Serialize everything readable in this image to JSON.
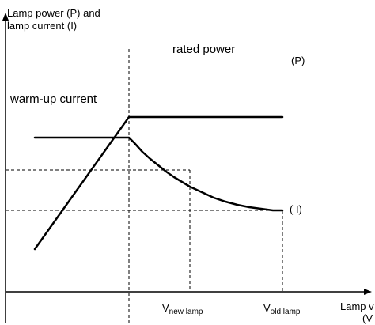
{
  "chart_data": {
    "type": "line",
    "ylabel_line1": "Lamp power (P) and",
    "ylabel_line2": "lamp current (I)",
    "xlabel_line1": "Lamp v",
    "xlabel_line2": "(V",
    "annotations": {
      "rated_power": "rated power",
      "warmup_current": "warm-up current",
      "power_marker": "(P)",
      "current_marker": "( I)"
    },
    "x_ticks": [
      {
        "main": "V",
        "sub": "new lamp",
        "x": 240
      },
      {
        "main": "V",
        "sub": "old lamp",
        "x": 357
      }
    ],
    "series": [
      {
        "name": "(P)",
        "points": [
          [
            44,
            96
          ],
          [
            163,
            263
          ],
          [
            357,
            263
          ]
        ]
      },
      {
        "name": "( I)",
        "points": [
          [
            44,
            237
          ],
          [
            163,
            237
          ],
          [
            170,
            230
          ],
          [
            180,
            219
          ],
          [
            190,
            210
          ],
          [
            200,
            202
          ],
          [
            210,
            194
          ],
          [
            220,
            187
          ],
          [
            230,
            181
          ],
          [
            240,
            175
          ],
          [
            255,
            168
          ],
          [
            270,
            161
          ],
          [
            285,
            156
          ],
          [
            300,
            152
          ],
          [
            315,
            149
          ],
          [
            330,
            147
          ],
          [
            345,
            145
          ],
          [
            357,
            145
          ]
        ]
      }
    ],
    "xlim": [
      0,
      470
    ],
    "ylim": [
      0,
      411
    ],
    "grid": false,
    "reference_lines": {
      "x_warmup_end": 163,
      "y_levels": [
        196,
        145
      ],
      "x_levels": [
        240,
        357
      ]
    },
    "colors": {
      "line": "#000000",
      "background": "#ffffff"
    }
  }
}
